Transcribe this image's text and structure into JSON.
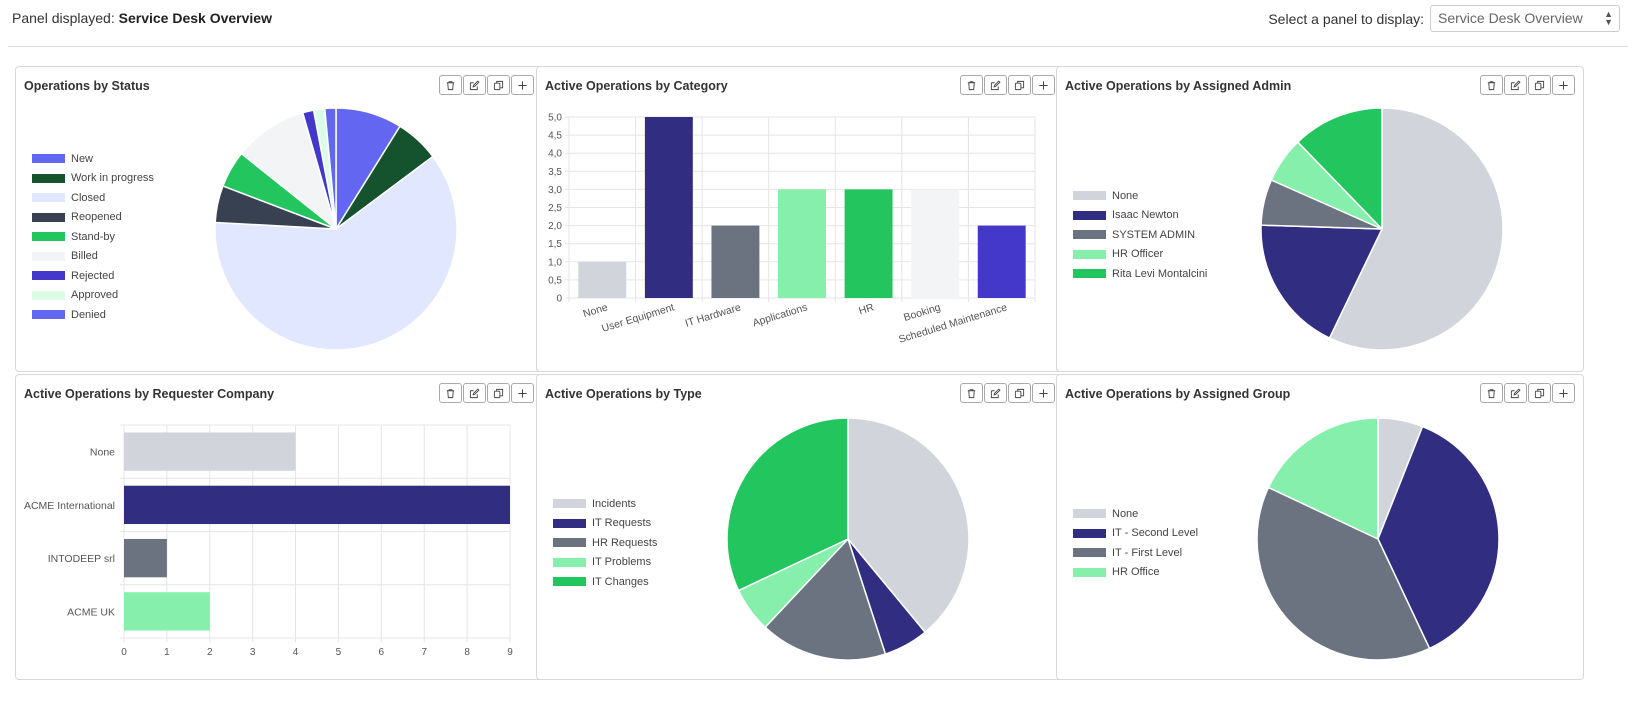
{
  "header": {
    "panel_prefix": "Panel displayed:",
    "panel_name": "Service Desk Overview",
    "select_label": "Select a panel to display:",
    "select_value": "Service Desk Overview"
  },
  "icons": [
    "trash-icon",
    "edit-icon",
    "copy-icon",
    "plus-icon"
  ],
  "widgets": {
    "status": {
      "title": "Operations by Status",
      "legend": [
        "New",
        "Work in progress",
        "Closed",
        "Reopened",
        "Stand-by",
        "Billed",
        "Rejected",
        "Approved",
        "Denied"
      ]
    },
    "category": {
      "title": "Active Operations by Category"
    },
    "admin": {
      "title": "Active Operations by Assigned Admin",
      "legend": [
        "None",
        "Isaac Newton",
        "SYSTEM ADMIN",
        "HR Officer",
        "Rita Levi Montalcini"
      ]
    },
    "company": {
      "title": "Active Operations by Requester Company"
    },
    "type": {
      "title": "Active Operations by Type",
      "legend": [
        "Incidents",
        "IT Requests",
        "HR Requests",
        "IT Problems",
        "IT Changes"
      ]
    },
    "group": {
      "title": "Active Operations by Assigned Group",
      "legend": [
        "None",
        "IT - Second Level",
        "IT - First Level",
        "HR Office"
      ]
    }
  },
  "chart_data": [
    {
      "id": "status",
      "type": "pie",
      "categories": [
        "New",
        "Work in progress",
        "Closed",
        "Reopened",
        "Stand-by",
        "Billed",
        "Rejected",
        "Approved",
        "Denied"
      ],
      "values": [
        9,
        6,
        62,
        5,
        5,
        10,
        1.5,
        1.5,
        1.5
      ],
      "colors": [
        "#6366F1",
        "#14532D",
        "#E0E7FF",
        "#374151",
        "#22C55E",
        "#F3F4F6",
        "#4338CA",
        "#DCFCE7",
        "#6366F1"
      ],
      "legend_position": "left"
    },
    {
      "id": "category",
      "type": "bar",
      "categories": [
        "None",
        "User Equipment",
        "IT Hardware",
        "Applications",
        "HR",
        "Booking",
        "Scheduled Maintenance"
      ],
      "values": [
        1,
        5,
        2,
        3,
        3,
        3,
        2
      ],
      "colors": [
        "#D1D5DB",
        "#312E81",
        "#6B7280",
        "#86EFAC",
        "#22C55E",
        "#F3F4F6",
        "#4338CA"
      ],
      "yticks": [
        "0",
        "0,5",
        "1,0",
        "1,5",
        "2,0",
        "2,5",
        "3,0",
        "3,5",
        "4,0",
        "4,5",
        "5,0"
      ],
      "ylim": [
        0,
        5
      ],
      "grid": true
    },
    {
      "id": "admin",
      "type": "pie",
      "categories": [
        "None",
        "Isaac Newton",
        "SYSTEM ADMIN",
        "HR Officer",
        "Rita Levi Montalcini"
      ],
      "values": [
        56,
        18,
        6,
        6,
        12
      ],
      "colors": [
        "#D1D5DB",
        "#312E81",
        "#6B7280",
        "#86EFAC",
        "#22C55E"
      ],
      "legend_position": "left"
    },
    {
      "id": "company",
      "type": "bar",
      "orientation": "horizontal",
      "categories": [
        "None",
        "ACME International",
        "INTODEEP srl",
        "ACME UK"
      ],
      "values": [
        4,
        9,
        1,
        2
      ],
      "colors": [
        "#D1D5DB",
        "#312E81",
        "#6B7280",
        "#86EFAC"
      ],
      "xticks": [
        "0",
        "1",
        "2",
        "3",
        "4",
        "5",
        "6",
        "7",
        "8",
        "9"
      ],
      "xlim": [
        0,
        9
      ],
      "grid": true
    },
    {
      "id": "type",
      "type": "pie",
      "categories": [
        "Incidents",
        "IT Requests",
        "HR Requests",
        "IT Problems",
        "IT Changes"
      ],
      "values": [
        39,
        6,
        17,
        6,
        32
      ],
      "colors": [
        "#D1D5DB",
        "#312E81",
        "#6B7280",
        "#86EFAC",
        "#22C55E"
      ],
      "legend_position": "left"
    },
    {
      "id": "group",
      "type": "pie",
      "categories": [
        "None",
        "IT - Second Level",
        "IT - First Level",
        "HR Office"
      ],
      "values": [
        6,
        37,
        39,
        18
      ],
      "colors": [
        "#D1D5DB",
        "#312E81",
        "#6B7280",
        "#86EFAC"
      ],
      "legend_position": "left"
    }
  ]
}
